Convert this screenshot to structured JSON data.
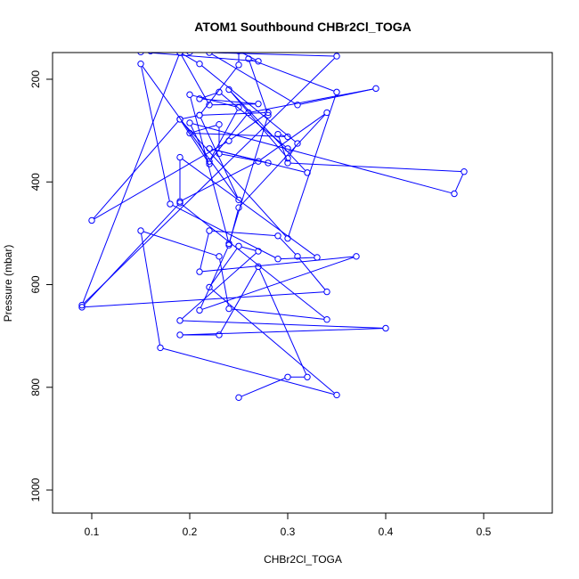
{
  "chart_data": {
    "type": "line",
    "title": "ATOM1 Southbound CHBr2Cl_TOGA",
    "xlabel": "CHBr2Cl_TOGA",
    "ylabel": "Pressure (mbar)",
    "xlim": [
      0.06,
      0.57
    ],
    "ylim": [
      1045,
      148
    ],
    "y_reversed": true,
    "x_ticks": [
      0.1,
      0.2,
      0.3,
      0.4,
      0.5
    ],
    "x_tick_labels": [
      "0.1",
      "0.2",
      "0.3",
      "0.4",
      "0.5"
    ],
    "y_ticks": [
      200,
      400,
      600,
      800,
      1000
    ],
    "y_tick_labels": [
      "200",
      "400",
      "600",
      "800",
      "1000"
    ],
    "grid": false,
    "legend": "none",
    "series": [
      {
        "color": "#0000ff",
        "marker": "open-circle",
        "x": [
          0.25,
          0.3,
          0.32,
          0.27,
          0.23,
          0.19,
          0.4,
          0.19,
          0.27,
          0.25,
          0.22,
          0.35,
          0.17,
          0.15,
          0.23,
          0.24,
          0.34,
          0.19,
          0.09,
          0.34,
          0.31,
          0.29,
          0.22,
          0.21,
          0.37,
          0.21,
          0.24,
          0.25,
          0.34,
          0.27,
          0.19,
          0.19,
          0.33,
          0.29,
          0.18,
          0.15,
          0.25,
          0.21,
          0.28,
          0.24,
          0.1,
          0.19,
          0.22,
          0.2,
          0.47,
          0.48,
          0.3,
          0.29,
          0.3,
          0.2,
          0.23,
          0.23,
          0.28,
          0.22,
          0.32,
          0.24,
          0.3,
          0.31,
          0.21,
          0.19,
          0.09,
          0.35,
          0.22,
          0.31,
          0.39,
          0.26,
          0.22,
          0.25,
          0.2,
          0.24,
          0.28,
          0.26,
          0.35,
          0.3,
          0.19,
          0.21,
          0.25,
          0.25,
          0.27,
          0.15,
          0.19,
          0.2,
          0.16,
          0.19,
          0.22,
          0.27,
          0.21,
          0.23,
          0.3
        ],
        "y": [
          820,
          780,
          780,
          565,
          698,
          698,
          685,
          670,
          535,
          525,
          605,
          815,
          723,
          495,
          545,
          647,
          668,
          441,
          644,
          614,
          545,
          505,
          495,
          575,
          545,
          650,
          523,
          450,
          265,
          360,
          438,
          352,
          547,
          550,
          443,
          170,
          435,
          270,
          265,
          320,
          475,
          278,
          365,
          285,
          423,
          380,
          363,
          307,
          312,
          305,
          288,
          345,
          363,
          335,
          382,
          220,
          354,
          325,
          170,
          148,
          640,
          155,
          148,
          250,
          218,
          265,
          360,
          255,
          230,
          520,
          270,
          160,
          225,
          510,
          278,
          270,
          172,
          145,
          165,
          147,
          148,
          147,
          145,
          148,
          250,
          248,
          238,
          225,
          335
        ]
      }
    ]
  }
}
